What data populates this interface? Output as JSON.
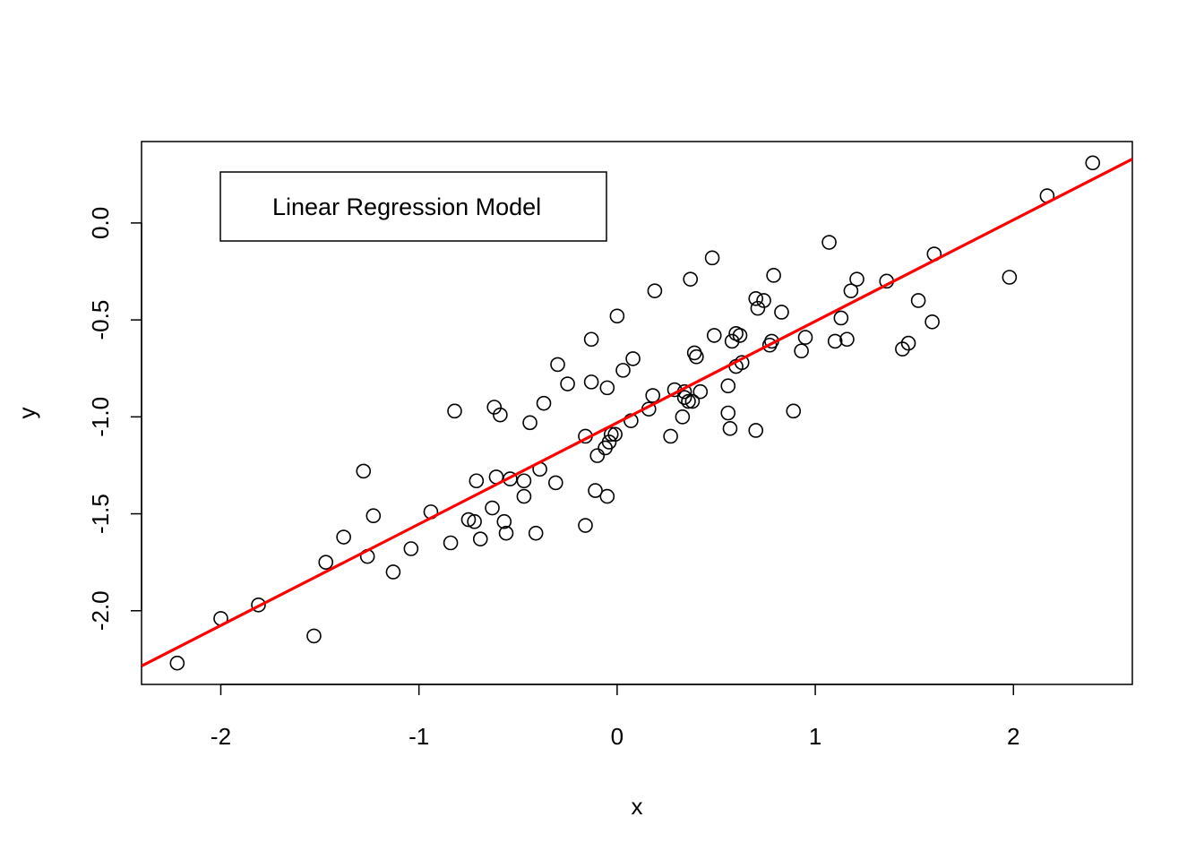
{
  "chart_data": {
    "type": "scatter",
    "xlabel": "x",
    "ylabel": "y",
    "xlim": [
      -2.4,
      2.6
    ],
    "ylim": [
      -2.38,
      0.42
    ],
    "xticks": [
      -2,
      -1,
      0,
      1,
      2
    ],
    "xtick_labels": [
      "-2",
      "-1",
      "0",
      "1",
      "2"
    ],
    "yticks": [
      -2.0,
      -1.5,
      -1.0,
      -0.5,
      0.0
    ],
    "ytick_labels": [
      "-2.0",
      "-1.5",
      "-1.0",
      "-0.5",
      "0.0"
    ],
    "grid": false,
    "legend": {
      "position": "top-left",
      "entries": [
        "Linear Regression Model"
      ]
    },
    "series": [
      {
        "type": "scatter",
        "marker": "open-circle",
        "color": "#000000",
        "points": [
          [
            -2.22,
            -2.27
          ],
          [
            -2.0,
            -2.04
          ],
          [
            -1.81,
            -1.97
          ],
          [
            -1.53,
            -2.13
          ],
          [
            -1.47,
            -1.75
          ],
          [
            -1.38,
            -1.62
          ],
          [
            -1.28,
            -1.28
          ],
          [
            -1.26,
            -1.72
          ],
          [
            -1.23,
            -1.51
          ],
          [
            -1.13,
            -1.8
          ],
          [
            -1.04,
            -1.68
          ],
          [
            -0.94,
            -1.49
          ],
          [
            -0.84,
            -1.65
          ],
          [
            -0.82,
            -0.97
          ],
          [
            -0.75,
            -1.53
          ],
          [
            -0.72,
            -1.54
          ],
          [
            -0.71,
            -1.33
          ],
          [
            -0.69,
            -1.63
          ],
          [
            -0.63,
            -1.47
          ],
          [
            -0.62,
            -0.95
          ],
          [
            -0.61,
            -1.31
          ],
          [
            -0.59,
            -0.99
          ],
          [
            -0.57,
            -1.54
          ],
          [
            -0.56,
            -1.6
          ],
          [
            -0.54,
            -1.32
          ],
          [
            -0.47,
            -1.33
          ],
          [
            -0.47,
            -1.41
          ],
          [
            -0.44,
            -1.03
          ],
          [
            -0.41,
            -1.6
          ],
          [
            -0.39,
            -1.27
          ],
          [
            -0.37,
            -0.93
          ],
          [
            -0.31,
            -1.34
          ],
          [
            -0.3,
            -0.73
          ],
          [
            -0.25,
            -0.83
          ],
          [
            -0.16,
            -1.56
          ],
          [
            -0.16,
            -1.1
          ],
          [
            -0.13,
            -0.82
          ],
          [
            -0.13,
            -0.6
          ],
          [
            -0.11,
            -1.38
          ],
          [
            -0.1,
            -1.2
          ],
          [
            -0.06,
            -1.16
          ],
          [
            -0.05,
            -0.85
          ],
          [
            -0.05,
            -1.41
          ],
          [
            -0.04,
            -1.13
          ],
          [
            -0.03,
            -1.09
          ],
          [
            -0.01,
            -1.09
          ],
          [
            0.0,
            -0.48
          ],
          [
            0.03,
            -0.76
          ],
          [
            0.07,
            -1.02
          ],
          [
            0.08,
            -0.7
          ],
          [
            0.16,
            -0.96
          ],
          [
            0.18,
            -0.89
          ],
          [
            0.19,
            -0.35
          ],
          [
            0.27,
            -1.1
          ],
          [
            0.29,
            -0.86
          ],
          [
            0.33,
            -1.0
          ],
          [
            0.34,
            -0.87
          ],
          [
            0.34,
            -0.9
          ],
          [
            0.36,
            -0.92
          ],
          [
            0.37,
            -0.29
          ],
          [
            0.38,
            -0.92
          ],
          [
            0.39,
            -0.67
          ],
          [
            0.4,
            -0.69
          ],
          [
            0.42,
            -0.87
          ],
          [
            0.48,
            -0.18
          ],
          [
            0.49,
            -0.58
          ],
          [
            0.56,
            -0.84
          ],
          [
            0.56,
            -0.98
          ],
          [
            0.57,
            -1.06
          ],
          [
            0.58,
            -0.61
          ],
          [
            0.6,
            -0.74
          ],
          [
            0.6,
            -0.57
          ],
          [
            0.62,
            -0.58
          ],
          [
            0.63,
            -0.72
          ],
          [
            0.7,
            -0.39
          ],
          [
            0.7,
            -1.07
          ],
          [
            0.71,
            -0.44
          ],
          [
            0.74,
            -0.4
          ],
          [
            0.77,
            -0.63
          ],
          [
            0.78,
            -0.61
          ],
          [
            0.79,
            -0.27
          ],
          [
            0.83,
            -0.46
          ],
          [
            0.89,
            -0.97
          ],
          [
            0.93,
            -0.66
          ],
          [
            0.95,
            -0.59
          ],
          [
            1.07,
            -0.1
          ],
          [
            1.1,
            -0.61
          ],
          [
            1.13,
            -0.49
          ],
          [
            1.16,
            -0.6
          ],
          [
            1.18,
            -0.35
          ],
          [
            1.21,
            -0.29
          ],
          [
            1.36,
            -0.3
          ],
          [
            1.44,
            -0.65
          ],
          [
            1.47,
            -0.62
          ],
          [
            1.52,
            -0.4
          ],
          [
            1.59,
            -0.51
          ],
          [
            1.6,
            -0.16
          ],
          [
            1.98,
            -0.28
          ],
          [
            2.17,
            0.14
          ],
          [
            2.4,
            0.31
          ]
        ]
      },
      {
        "type": "line",
        "name": "Linear Regression Model",
        "color": "#ff0000",
        "intercept": -1.03,
        "slope": 0.523
      }
    ]
  }
}
